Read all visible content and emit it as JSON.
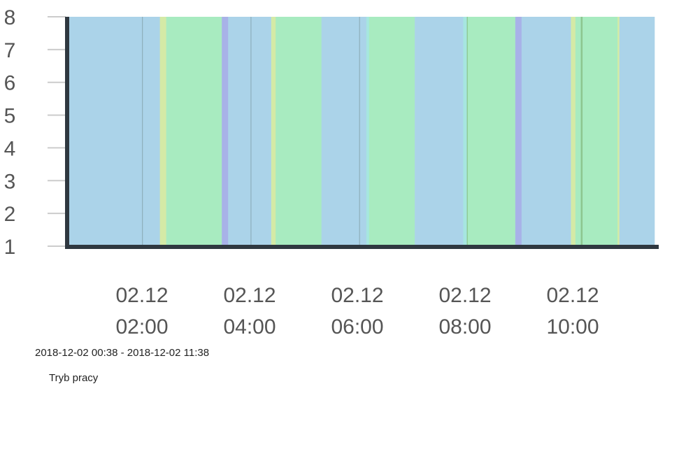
{
  "chart_data": {
    "type": "timeline",
    "title": "",
    "ylim": [
      1,
      8
    ],
    "yticks": [
      1,
      2,
      3,
      4,
      5,
      6,
      7,
      8
    ],
    "x_start": "2018-12-02 00:38",
    "x_end": "2018-12-02 11:38",
    "xticks": [
      {
        "t": "2018-12-02 02:00",
        "line1": "02.12",
        "line2": "02:00"
      },
      {
        "t": "2018-12-02 04:00",
        "line1": "02.12",
        "line2": "04:00"
      },
      {
        "t": "2018-12-02 06:00",
        "line1": "02.12",
        "line2": "06:00"
      },
      {
        "t": "2018-12-02 08:00",
        "line1": "02.12",
        "line2": "08:00"
      },
      {
        "t": "2018-12-02 10:00",
        "line1": "02.12",
        "line2": "10:00"
      }
    ],
    "colors": {
      "blue": "#abd3e9",
      "green": "#a8ebc0",
      "yellowgreen": "#d4eaa6",
      "purple": "#a8b2e8",
      "aqua": "#a6e6e0",
      "line_gray": "#8fb0be",
      "line_green": "#8cc68f",
      "axis": "#2f3840",
      "grid": "#cccccc"
    },
    "segments": [
      {
        "start": "2018-12-02 00:38",
        "end": "2018-12-02 02:00",
        "color": "blue"
      },
      {
        "start": "2018-12-02 02:00",
        "end": "2018-12-02 02:01",
        "color": "line_gray"
      },
      {
        "start": "2018-12-02 02:01",
        "end": "2018-12-02 02:20",
        "color": "blue"
      },
      {
        "start": "2018-12-02 02:20",
        "end": "2018-12-02 02:27",
        "color": "yellowgreen"
      },
      {
        "start": "2018-12-02 02:27",
        "end": "2018-12-02 03:29",
        "color": "green"
      },
      {
        "start": "2018-12-02 03:29",
        "end": "2018-12-02 03:36",
        "color": "purple"
      },
      {
        "start": "2018-12-02 03:36",
        "end": "2018-12-02 04:01",
        "color": "blue"
      },
      {
        "start": "2018-12-02 04:01",
        "end": "2018-12-02 04:02",
        "color": "line_gray"
      },
      {
        "start": "2018-12-02 04:02",
        "end": "2018-12-02 04:24",
        "color": "blue"
      },
      {
        "start": "2018-12-02 04:24",
        "end": "2018-12-02 04:29",
        "color": "yellowgreen"
      },
      {
        "start": "2018-12-02 04:29",
        "end": "2018-12-02 05:20",
        "color": "green"
      },
      {
        "start": "2018-12-02 05:20",
        "end": "2018-12-02 06:02",
        "color": "blue"
      },
      {
        "start": "2018-12-02 06:02",
        "end": "2018-12-02 06:03",
        "color": "line_gray"
      },
      {
        "start": "2018-12-02 06:03",
        "end": "2018-12-02 06:10",
        "color": "blue"
      },
      {
        "start": "2018-12-02 06:10",
        "end": "2018-12-02 06:13",
        "color": "aqua"
      },
      {
        "start": "2018-12-02 06:13",
        "end": "2018-12-02 07:04",
        "color": "green"
      },
      {
        "start": "2018-12-02 07:04",
        "end": "2018-12-02 07:58",
        "color": "blue"
      },
      {
        "start": "2018-12-02 07:58",
        "end": "2018-12-02 08:02",
        "color": "aqua"
      },
      {
        "start": "2018-12-02 08:02",
        "end": "2018-12-02 08:03",
        "color": "line_green"
      },
      {
        "start": "2018-12-02 08:03",
        "end": "2018-12-02 08:56",
        "color": "green"
      },
      {
        "start": "2018-12-02 08:56",
        "end": "2018-12-02 09:03",
        "color": "purple"
      },
      {
        "start": "2018-12-02 09:03",
        "end": "2018-12-02 09:58",
        "color": "blue"
      },
      {
        "start": "2018-12-02 09:58",
        "end": "2018-12-02 10:03",
        "color": "yellowgreen"
      },
      {
        "start": "2018-12-02 10:03",
        "end": "2018-12-02 10:09",
        "color": "green"
      },
      {
        "start": "2018-12-02 10:09",
        "end": "2018-12-02 10:11",
        "color": "line_green"
      },
      {
        "start": "2018-12-02 10:11",
        "end": "2018-12-02 10:50",
        "color": "green"
      },
      {
        "start": "2018-12-02 10:50",
        "end": "2018-12-02 10:52",
        "color": "yellowgreen"
      },
      {
        "start": "2018-12-02 10:52",
        "end": "2018-12-02 11:43",
        "color": "blue"
      }
    ]
  },
  "footer": {
    "range_label": "2018-12-02 00:38 - 2018-12-02 11:38",
    "series_label": "Tryb pracy"
  }
}
